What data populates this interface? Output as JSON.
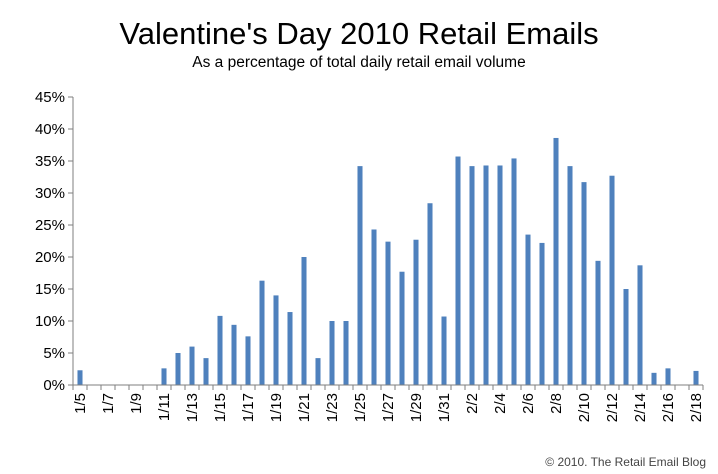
{
  "chart_data": {
    "type": "bar",
    "title": "Valentine's Day 2010 Retail Emails",
    "subtitle": "As a percentage of total daily retail email volume",
    "credit": "© 2010. The Retail Email Blog",
    "xlabel": "",
    "ylabel": "",
    "ylim": [
      0,
      45
    ],
    "y_ticks": [
      "0%",
      "5%",
      "10%",
      "15%",
      "20%",
      "25%",
      "30%",
      "35%",
      "40%",
      "45%"
    ],
    "grid": false,
    "legend": "none",
    "bar_color": "#4f81bd",
    "categories": [
      "1/5",
      "1/6",
      "1/7",
      "1/8",
      "1/9",
      "1/10",
      "1/11",
      "1/12",
      "1/13",
      "1/14",
      "1/15",
      "1/16",
      "1/17",
      "1/18",
      "1/19",
      "1/20",
      "1/21",
      "1/22",
      "1/23",
      "1/24",
      "1/25",
      "1/26",
      "1/27",
      "1/28",
      "1/29",
      "1/30",
      "1/31",
      "2/1",
      "2/2",
      "2/3",
      "2/4",
      "2/5",
      "2/6",
      "2/7",
      "2/8",
      "2/9",
      "2/10",
      "2/11",
      "2/12",
      "2/13",
      "2/14",
      "2/15",
      "2/16",
      "2/17",
      "2/18"
    ],
    "x_tick_labels": [
      "1/5",
      "1/7",
      "1/9",
      "1/11",
      "1/13",
      "1/15",
      "1/17",
      "1/19",
      "1/21",
      "1/23",
      "1/25",
      "1/27",
      "1/29",
      "1/31",
      "2/2",
      "2/4",
      "2/6",
      "2/8",
      "2/10",
      "2/12",
      "2/14",
      "2/16",
      "2/18"
    ],
    "values": [
      2.3,
      0,
      0,
      0,
      0,
      0,
      2.6,
      5.0,
      6.0,
      4.2,
      10.8,
      9.4,
      7.6,
      16.3,
      14.0,
      11.4,
      20.0,
      4.2,
      10.0,
      10.0,
      34.2,
      24.3,
      22.4,
      17.7,
      22.7,
      28.4,
      10.7,
      35.7,
      34.2,
      34.3,
      34.3,
      35.4,
      23.5,
      22.2,
      38.6,
      34.2,
      31.7,
      19.4,
      32.7,
      15.0,
      18.7,
      1.9,
      2.6,
      0,
      2.2
    ]
  }
}
